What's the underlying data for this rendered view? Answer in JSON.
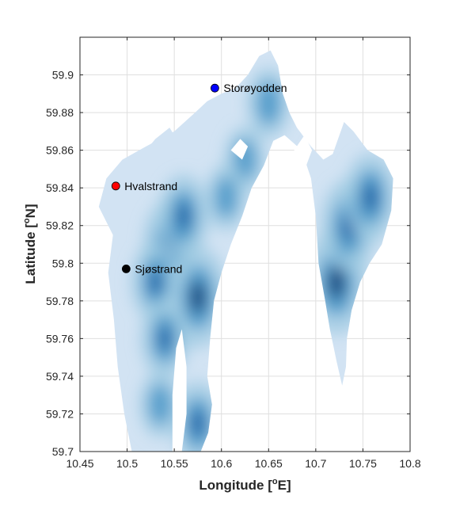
{
  "chart_data": {
    "type": "heatmap",
    "title": "",
    "xlabel": {
      "prefix": "Longitude [",
      "sup": "o",
      "suffix": "E]"
    },
    "ylabel": {
      "prefix": "Latitude [",
      "sup": "o",
      "suffix": "N]"
    },
    "xlim": [
      10.45,
      10.8
    ],
    "ylim": [
      59.7,
      59.92
    ],
    "x_ticks": [
      {
        "value": 10.45,
        "label": "10.45"
      },
      {
        "value": 10.5,
        "label": "10.5"
      },
      {
        "value": 10.55,
        "label": "10.55"
      },
      {
        "value": 10.6,
        "label": "10.6"
      },
      {
        "value": 10.65,
        "label": "10.65"
      },
      {
        "value": 10.7,
        "label": "10.7"
      },
      {
        "value": 10.75,
        "label": "10.75"
      },
      {
        "value": 10.8,
        "label": "10.8"
      }
    ],
    "y_ticks": [
      {
        "value": 59.7,
        "label": "59.7"
      },
      {
        "value": 59.72,
        "label": "59.72"
      },
      {
        "value": 59.74,
        "label": "59.74"
      },
      {
        "value": 59.76,
        "label": "59.76"
      },
      {
        "value": 59.78,
        "label": "59.78"
      },
      {
        "value": 59.8,
        "label": "59.8"
      },
      {
        "value": 59.82,
        "label": "59.82"
      },
      {
        "value": 59.84,
        "label": "59.84"
      },
      {
        "value": 59.86,
        "label": "59.86"
      },
      {
        "value": 59.88,
        "label": "59.88"
      },
      {
        "value": 59.9,
        "label": "59.9"
      }
    ],
    "grid": true,
    "colormap": [
      "#d2e3f3",
      "#9ecae1",
      "#4292c6",
      "#08519c",
      "#08306b"
    ],
    "water_polygons": [
      [
        [
          10.505,
          59.7
        ],
        [
          10.497,
          59.72
        ],
        [
          10.49,
          59.745
        ],
        [
          10.486,
          59.77
        ],
        [
          10.48,
          59.795
        ],
        [
          10.485,
          59.815
        ],
        [
          10.47,
          59.83
        ],
        [
          10.478,
          59.845
        ],
        [
          10.495,
          59.855
        ],
        [
          10.52,
          59.862
        ],
        [
          10.55,
          59.87
        ],
        [
          10.572,
          59.88
        ],
        [
          10.585,
          59.886
        ],
        [
          10.6,
          59.89
        ],
        [
          10.615,
          59.893
        ],
        [
          10.628,
          59.9
        ],
        [
          10.64,
          59.91
        ],
        [
          10.652,
          59.913
        ],
        [
          10.66,
          59.905
        ],
        [
          10.665,
          59.89
        ],
        [
          10.672,
          59.88
        ],
        [
          10.68,
          59.872
        ],
        [
          10.695,
          59.862
        ],
        [
          10.708,
          59.855
        ],
        [
          10.718,
          59.858
        ],
        [
          10.73,
          59.875
        ],
        [
          10.74,
          59.87
        ],
        [
          10.755,
          59.86
        ],
        [
          10.772,
          59.855
        ],
        [
          10.782,
          59.845
        ],
        [
          10.78,
          59.828
        ],
        [
          10.77,
          59.81
        ],
        [
          10.757,
          59.8
        ],
        [
          10.747,
          59.79
        ],
        [
          10.738,
          59.775
        ],
        [
          10.733,
          59.76
        ],
        [
          10.732,
          59.745
        ],
        [
          10.728,
          59.735
        ],
        [
          10.722,
          59.748
        ],
        [
          10.715,
          59.765
        ],
        [
          10.71,
          59.78
        ],
        [
          10.703,
          59.8
        ],
        [
          10.7,
          59.825
        ],
        [
          10.695,
          59.845
        ],
        [
          10.685,
          59.86
        ],
        [
          10.667,
          59.868
        ],
        [
          10.655,
          59.865
        ],
        [
          10.645,
          59.852
        ],
        [
          10.632,
          59.84
        ],
        [
          10.622,
          59.825
        ],
        [
          10.61,
          59.81
        ],
        [
          10.6,
          59.795
        ],
        [
          10.592,
          59.78
        ],
        [
          10.588,
          59.76
        ],
        [
          10.585,
          59.74
        ],
        [
          10.59,
          59.725
        ],
        [
          10.586,
          59.71
        ],
        [
          10.578,
          59.7
        ]
      ],
      [
        [
          10.518,
          59.853
        ],
        [
          10.535,
          59.858
        ],
        [
          10.55,
          59.868
        ],
        [
          10.545,
          59.872
        ],
        [
          10.53,
          59.866
        ],
        [
          10.52,
          59.86
        ]
      ]
    ],
    "land_islands": [
      [
        [
          10.548,
          59.7
        ],
        [
          10.548,
          59.73
        ],
        [
          10.552,
          59.755
        ],
        [
          10.558,
          59.765
        ],
        [
          10.563,
          59.745
        ],
        [
          10.563,
          59.72
        ],
        [
          10.558,
          59.7
        ]
      ],
      [
        [
          10.61,
          59.86
        ],
        [
          10.62,
          59.866
        ],
        [
          10.628,
          59.862
        ],
        [
          10.622,
          59.855
        ]
      ],
      [
        [
          10.677,
          59.86
        ],
        [
          10.688,
          59.868
        ],
        [
          10.696,
          59.86
        ],
        [
          10.69,
          59.852
        ]
      ]
    ],
    "intensity_centers": [
      {
        "lon": 10.722,
        "lat": 59.79,
        "level": 1.0
      },
      {
        "lon": 10.735,
        "lat": 59.82,
        "level": 0.85
      },
      {
        "lon": 10.758,
        "lat": 59.835,
        "level": 0.8
      },
      {
        "lon": 10.575,
        "lat": 59.782,
        "level": 0.95
      },
      {
        "lon": 10.545,
        "lat": 59.81,
        "level": 0.8
      },
      {
        "lon": 10.56,
        "lat": 59.825,
        "level": 0.75
      },
      {
        "lon": 10.53,
        "lat": 59.79,
        "level": 0.7
      },
      {
        "lon": 10.54,
        "lat": 59.76,
        "level": 0.7
      },
      {
        "lon": 10.575,
        "lat": 59.715,
        "level": 0.75
      },
      {
        "lon": 10.535,
        "lat": 59.725,
        "level": 0.55
      },
      {
        "lon": 10.65,
        "lat": 59.885,
        "level": 0.6
      },
      {
        "lon": 10.625,
        "lat": 59.855,
        "level": 0.55
      },
      {
        "lon": 10.605,
        "lat": 59.835,
        "level": 0.55
      }
    ],
    "sites": [
      {
        "name": "Storøyodden",
        "lon": 10.593,
        "lat": 59.893,
        "color": "#0000ff"
      },
      {
        "name": "Hvalstrand",
        "lon": 10.488,
        "lat": 59.841,
        "color": "#ff0000"
      },
      {
        "name": "Sjøstrand",
        "lon": 10.499,
        "lat": 59.797,
        "color": "#000000"
      }
    ]
  }
}
